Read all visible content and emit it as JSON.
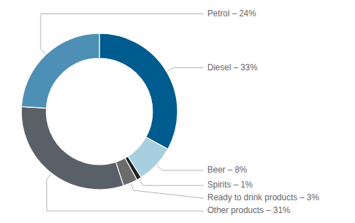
{
  "chart_data": {
    "type": "donut",
    "values": [
      33,
      8,
      1,
      3,
      31,
      24
    ],
    "colors": [
      "#005b8e",
      "#a8cfe0",
      "#222222",
      "#6b6b6b",
      "#5a6068",
      "#4e8fb5"
    ],
    "data_labels": true,
    "value_labels": [
      "Diesel – 33%",
      "Beer – 8%",
      "Spirits – 1%",
      "Ready to drink products – 3%",
      "Other products – 31%",
      "Petrol – 24%"
    ]
  }
}
